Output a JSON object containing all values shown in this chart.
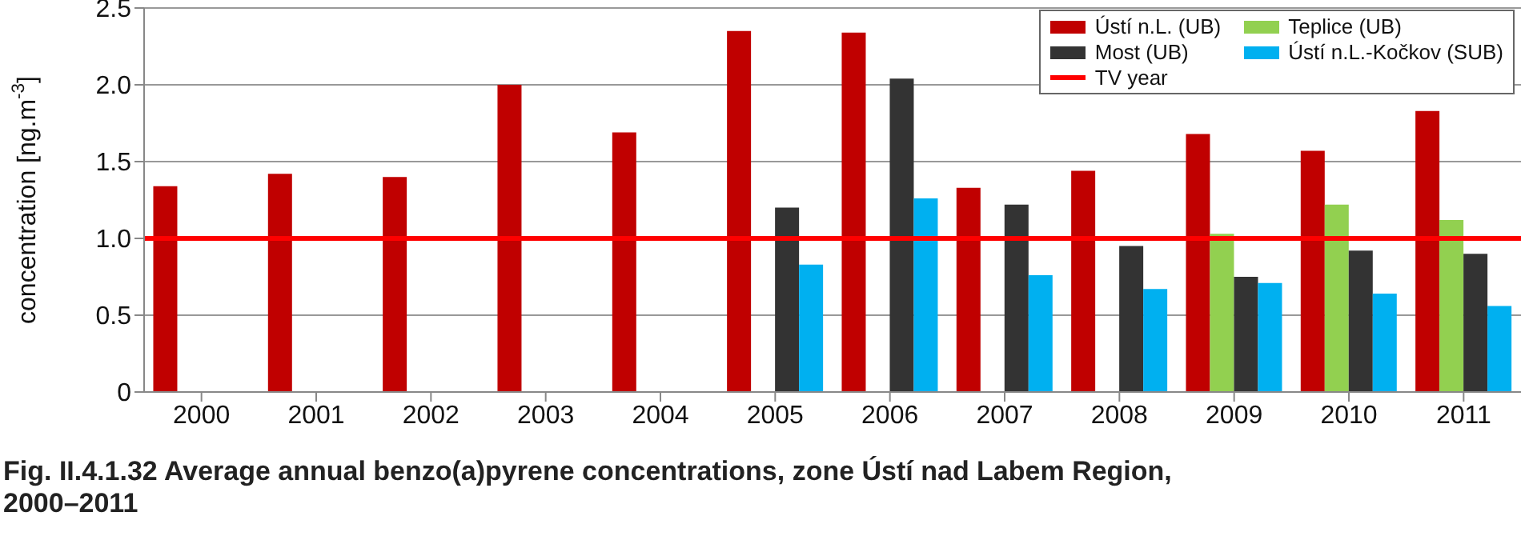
{
  "chart_data": {
    "type": "bar",
    "title": "Fig. II.4.1.32  Average annual benzo(a)pyrene concentrations, zone Ústí nad Labem Region, 2000–2011",
    "ylabel": "concentration [ng.m$^{-3}$]",
    "categories": [
      "2000",
      "2001",
      "2002",
      "2003",
      "2004",
      "2005",
      "2006",
      "2007",
      "2008",
      "2009",
      "2010",
      "2011"
    ],
    "series": [
      {
        "name": "Ústí n.L. (UB)",
        "color": "#c00000",
        "values": [
          1.34,
          1.42,
          1.4,
          2.0,
          1.69,
          2.35,
          2.34,
          1.33,
          1.44,
          1.68,
          1.57,
          1.83
        ]
      },
      {
        "name": "Teplice (UB)",
        "color": "#92d050",
        "values": [
          null,
          null,
          null,
          null,
          null,
          null,
          null,
          null,
          null,
          1.03,
          1.22,
          1.12
        ]
      },
      {
        "name": "Most (UB)",
        "color": "#333333",
        "values": [
          null,
          null,
          null,
          null,
          null,
          1.2,
          2.04,
          1.22,
          0.95,
          0.75,
          0.92,
          0.9
        ]
      },
      {
        "name": "Ústí n.L.-Kočkov (SUB)",
        "color": "#00b0f0",
        "values": [
          null,
          null,
          null,
          null,
          null,
          0.83,
          1.26,
          0.76,
          0.67,
          0.71,
          0.64,
          0.56
        ]
      }
    ],
    "ylim": [
      0,
      2.5
    ],
    "yticks": [
      0,
      0.5,
      {
        "value": 1,
        "label": "1.0"
      },
      1.5,
      {
        "value": 2,
        "label": "2.0"
      },
      2.5
    ],
    "ref_lines": [
      {
        "axis": "y",
        "value": 1,
        "label": "TV year",
        "color": "#ff0000"
      }
    ],
    "grid": "y",
    "legend": "top right"
  }
}
